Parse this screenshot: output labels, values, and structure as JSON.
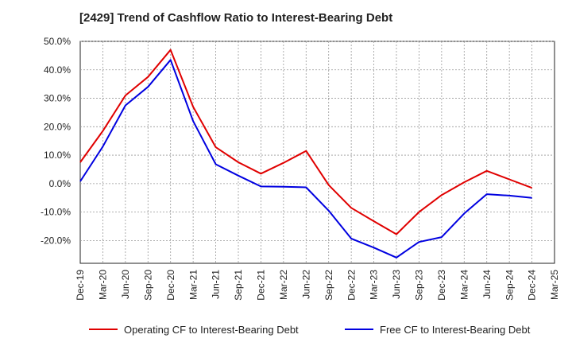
{
  "chart_data": {
    "type": "line",
    "title": "[2429]  Trend of Cashflow Ratio to Interest-Bearing Debt",
    "xlabel": "",
    "ylabel": "",
    "x_ticks": [
      "Dec-19",
      "Mar-20",
      "Jun-20",
      "Sep-20",
      "Dec-20",
      "Mar-21",
      "Jun-21",
      "Sep-21",
      "Dec-21",
      "Mar-22",
      "Jun-22",
      "Sep-22",
      "Dec-22",
      "Mar-23",
      "Jun-23",
      "Sep-23",
      "Dec-23",
      "Mar-24",
      "Jun-24",
      "Sep-24",
      "Dec-24",
      "Mar-25"
    ],
    "y_ticks": [
      "50.0%",
      "40.0%",
      "30.0%",
      "20.0%",
      "10.0%",
      "0.0%",
      "-10.0%",
      "-20.0%"
    ],
    "y_tick_values": [
      50,
      40,
      30,
      20,
      10,
      0,
      -10,
      -20
    ],
    "ylim": [
      -28,
      50
    ],
    "grid": true,
    "legend_position": "bottom",
    "categories": [
      "Dec-19",
      "Mar-20",
      "Jun-20",
      "Sep-20",
      "Dec-20",
      "Mar-21",
      "Jun-21",
      "Sep-21",
      "Dec-21",
      "Mar-22",
      "Jun-22",
      "Sep-22",
      "Dec-22",
      "Mar-23",
      "Jun-23",
      "Sep-23",
      "Dec-23",
      "Mar-24",
      "Jun-24",
      "Sep-24",
      "Dec-24"
    ],
    "series": [
      {
        "name": "Operating CF to Interest-Bearing Debt",
        "color": "#e00000",
        "values": [
          7.5,
          18.5,
          31.0,
          37.5,
          47.0,
          27.0,
          12.8,
          7.5,
          3.5,
          7.3,
          11.5,
          -0.5,
          -8.5,
          -13.2,
          -17.8,
          -10.0,
          -4.0,
          0.5,
          4.5,
          1.5,
          -1.5
        ]
      },
      {
        "name": "Free CF to Interest-Bearing Debt",
        "color": "#0000e0",
        "values": [
          0.8,
          13.0,
          27.5,
          34.0,
          43.5,
          22.0,
          6.8,
          2.8,
          -1.0,
          -1.1,
          -1.3,
          -9.5,
          -19.3,
          -22.5,
          -26.0,
          -20.5,
          -18.8,
          -10.5,
          -3.7,
          -4.2,
          -5.0
        ]
      }
    ]
  }
}
